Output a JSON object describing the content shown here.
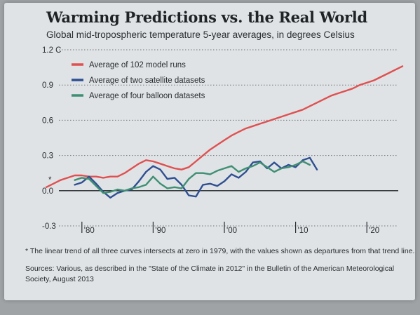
{
  "header": {
    "title": "Warming Predictions vs. the Real World",
    "subtitle": "Global mid-tropospheric temperature 5-year averages, in degrees Celsius"
  },
  "footer": {
    "footnote": "* The linear trend of all three curves intersects at zero in 1979, with the values shown as departures from that trend line.",
    "sources": "Sources: Various, as described in the \"State of the Climate in 2012\" in the Bulletin of the American Meteorological Society, August 2013"
  },
  "chart_data": {
    "type": "line",
    "title": "Warming Predictions vs. the Real World",
    "subtitle": "Global mid-tropospheric temperature 5-year averages, in degrees Celsius",
    "xlim": [
      1975,
      2025
    ],
    "ylim": [
      -0.3,
      1.2
    ],
    "x_ticks": [
      1980,
      1990,
      2000,
      2010,
      2020
    ],
    "x_tick_labels": [
      "'80",
      "'90",
      "'00",
      "'10",
      "'20"
    ],
    "y_ticks": [
      1.2,
      0.9,
      0.6,
      0.3,
      0.0,
      -0.3
    ],
    "y_tick_labels": [
      "1.2 C",
      "0.9",
      "0.6",
      "0.3",
      "0.0",
      "-0.3"
    ],
    "grid": "dotted horizontal",
    "legend": "top-left",
    "marker_note": "*",
    "series": [
      {
        "name": "Average of 102 model runs",
        "color": "#e05050",
        "x": [
          1975,
          1976,
          1977,
          1978,
          1979,
          1980,
          1981,
          1982,
          1983,
          1984,
          1985,
          1986,
          1987,
          1988,
          1989,
          1990,
          1991,
          1992,
          1993,
          1994,
          1995,
          1996,
          1997,
          1998,
          1999,
          2000,
          2001,
          2002,
          2003,
          2004,
          2005,
          2006,
          2007,
          2008,
          2009,
          2010,
          2011,
          2012,
          2013,
          2014,
          2015,
          2016,
          2017,
          2018,
          2019,
          2020,
          2021,
          2022,
          2023,
          2024,
          2025
        ],
        "values": [
          0.03,
          0.06,
          0.09,
          0.11,
          0.13,
          0.13,
          0.12,
          0.12,
          0.11,
          0.12,
          0.12,
          0.15,
          0.19,
          0.23,
          0.26,
          0.25,
          0.23,
          0.21,
          0.19,
          0.18,
          0.2,
          0.25,
          0.3,
          0.35,
          0.39,
          0.43,
          0.47,
          0.5,
          0.53,
          0.55,
          0.57,
          0.59,
          0.61,
          0.63,
          0.65,
          0.67,
          0.69,
          0.72,
          0.75,
          0.78,
          0.81,
          0.83,
          0.85,
          0.87,
          0.9,
          0.92,
          0.94,
          0.97,
          1.0,
          1.03,
          1.06
        ]
      },
      {
        "name": "Average of two satellite datasets",
        "color": "#2f4f92",
        "x": [
          1979,
          1980,
          1981,
          1982,
          1983,
          1984,
          1985,
          1986,
          1987,
          1988,
          1989,
          1990,
          1991,
          1992,
          1993,
          1994,
          1995,
          1996,
          1997,
          1998,
          1999,
          2000,
          2001,
          2002,
          2003,
          2004,
          2005,
          2006,
          2007,
          2008,
          2009,
          2010,
          2011,
          2012,
          2013
        ],
        "values": [
          0.05,
          0.07,
          0.12,
          0.06,
          -0.01,
          -0.06,
          -0.02,
          0.0,
          0.01,
          0.08,
          0.16,
          0.21,
          0.18,
          0.1,
          0.11,
          0.05,
          -0.04,
          -0.05,
          0.05,
          0.06,
          0.04,
          0.08,
          0.14,
          0.11,
          0.16,
          0.24,
          0.25,
          0.19,
          0.24,
          0.19,
          0.22,
          0.2,
          0.26,
          0.28,
          0.18
        ]
      },
      {
        "name": "Average of four balloon datasets",
        "color": "#3f8f72",
        "x": [
          1979,
          1980,
          1981,
          1982,
          1983,
          1984,
          1985,
          1986,
          1987,
          1988,
          1989,
          1990,
          1991,
          1992,
          1993,
          1994,
          1995,
          1996,
          1997,
          1998,
          1999,
          2000,
          2001,
          2002,
          2003,
          2004,
          2005,
          2006,
          2007,
          2008,
          2009,
          2010,
          2011,
          2012
        ],
        "values": [
          0.09,
          0.11,
          0.1,
          0.04,
          -0.02,
          -0.01,
          0.01,
          0.0,
          0.02,
          0.03,
          0.05,
          0.12,
          0.06,
          0.02,
          0.03,
          0.02,
          0.1,
          0.15,
          0.15,
          0.14,
          0.17,
          0.19,
          0.21,
          0.16,
          0.19,
          0.21,
          0.24,
          0.2,
          0.16,
          0.19,
          0.2,
          0.22,
          0.25,
          0.22
        ]
      }
    ]
  }
}
